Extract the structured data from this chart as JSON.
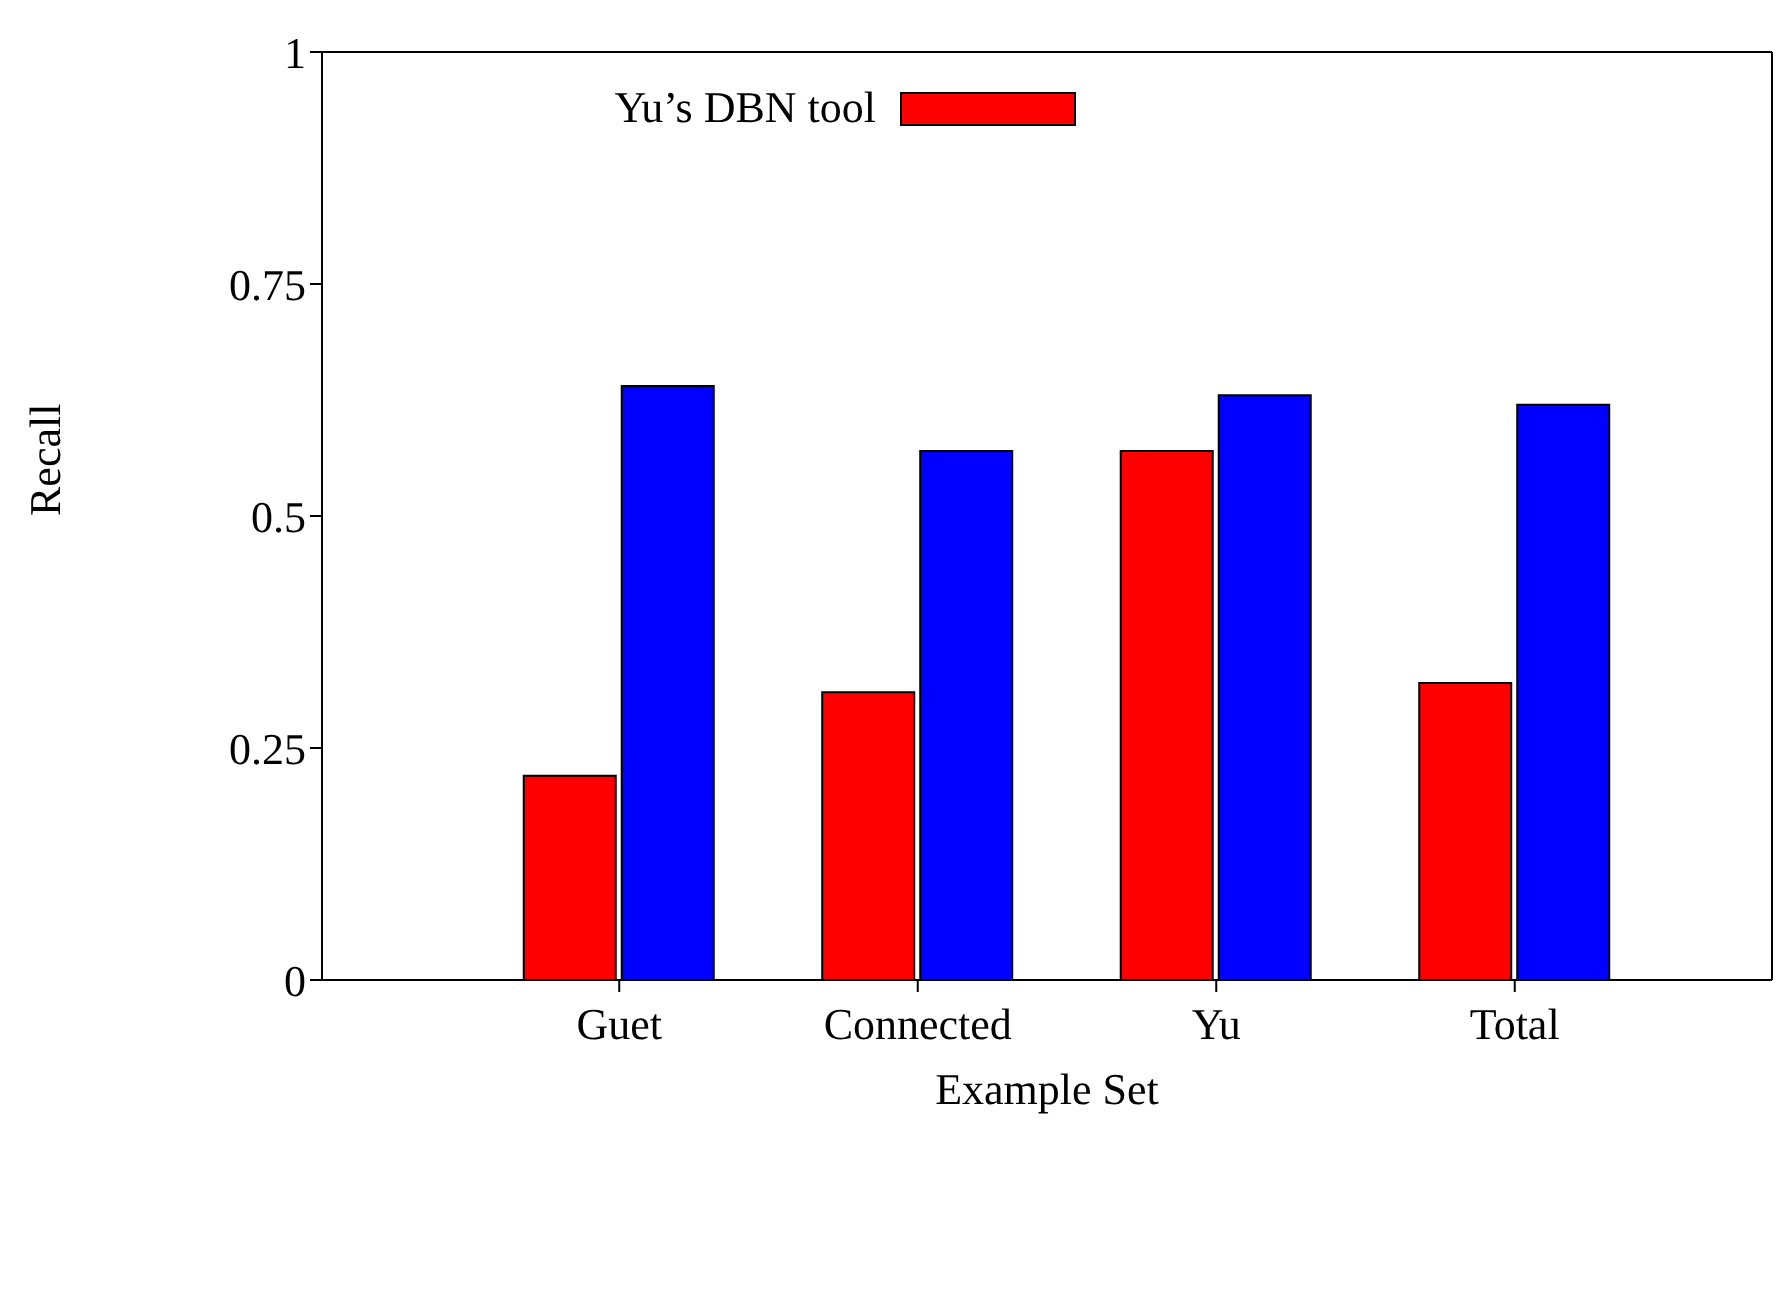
{
  "chart_data": {
    "type": "bar",
    "xlabel": "Example Set",
    "ylabel": "Recall",
    "categories": [
      "Guet",
      "Connected",
      "Yu",
      "Total"
    ],
    "series": [
      {
        "name": "Yu’s DBN tool",
        "color": "#ff0000",
        "values": [
          0.22,
          0.31,
          0.57,
          0.32
        ]
      },
      {
        "color": "#0000ff",
        "values": [
          0.64,
          0.57,
          0.63,
          0.62
        ]
      }
    ],
    "ylim": [
      0,
      1
    ],
    "yticks": [
      0,
      {
        "value": 0.25,
        "label": "0.25"
      },
      {
        "value": 0.5,
        "label": "0.5"
      },
      {
        "value": 0.75,
        "label": "0.75"
      },
      1
    ],
    "legend": "top left"
  }
}
